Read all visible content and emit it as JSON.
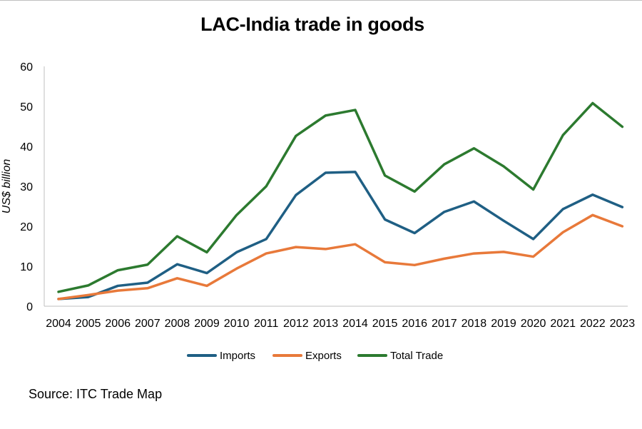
{
  "chart_data": {
    "type": "line",
    "title": "LAC-India trade in goods",
    "ylabel": "US$ billion",
    "xlabel": "",
    "ylim": [
      0,
      60
    ],
    "yticks": [
      0,
      10,
      20,
      30,
      40,
      50,
      60
    ],
    "categories": [
      "2004",
      "2005",
      "2006",
      "2007",
      "2008",
      "2009",
      "2010",
      "2011",
      "2012",
      "2013",
      "2014",
      "2015",
      "2016",
      "2017",
      "2018",
      "2019",
      "2020",
      "2021",
      "2022",
      "2023"
    ],
    "legend_position": "bottom",
    "grid": false,
    "series": [
      {
        "name": "Imports",
        "color": "#1f5f84",
        "values": [
          1.8,
          2.3,
          5.1,
          5.9,
          10.5,
          8.3,
          13.5,
          16.8,
          27.8,
          33.4,
          33.6,
          21.7,
          18.3,
          23.6,
          26.2,
          21.4,
          16.8,
          24.3,
          27.9,
          24.8
        ]
      },
      {
        "name": "Exports",
        "color": "#e8793a",
        "values": [
          1.8,
          2.8,
          3.9,
          4.5,
          7.0,
          5.1,
          9.4,
          13.2,
          14.8,
          14.3,
          15.5,
          11.0,
          10.3,
          11.9,
          13.2,
          13.6,
          12.4,
          18.5,
          22.8,
          20.0
        ]
      },
      {
        "name": "Total Trade",
        "color": "#2c7a2f",
        "values": [
          3.6,
          5.2,
          9.0,
          10.4,
          17.5,
          13.5,
          22.8,
          30.0,
          42.6,
          47.7,
          49.1,
          32.7,
          28.7,
          35.5,
          39.5,
          35.0,
          29.2,
          42.8,
          50.8,
          44.9
        ]
      }
    ]
  },
  "source_text": "Source: ITC Trade Map"
}
